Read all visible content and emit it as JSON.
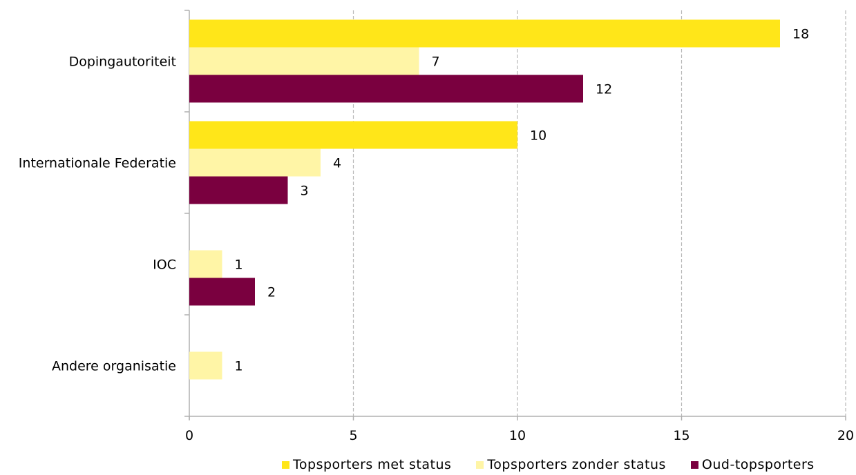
{
  "chart_data": {
    "type": "bar",
    "orientation": "horizontal",
    "categories": [
      "Dopingautoriteit",
      "Internationale Federatie",
      "IOC",
      "Andere organisatie"
    ],
    "series": [
      {
        "name": "Topsporters met status",
        "color": "#FFE619",
        "values": [
          18,
          10,
          null,
          null
        ]
      },
      {
        "name": "Topsporters zonder status",
        "color": "#FFF5A6",
        "values": [
          7,
          4,
          1,
          1
        ]
      },
      {
        "name": "Oud-topsporters",
        "color": "#7A003F",
        "values": [
          12,
          3,
          2,
          null
        ]
      }
    ],
    "xlim": [
      0,
      20
    ],
    "xticks": [
      0,
      5,
      10,
      15,
      20
    ],
    "grid": "vertical-dashed",
    "legend_position": "bottom"
  }
}
